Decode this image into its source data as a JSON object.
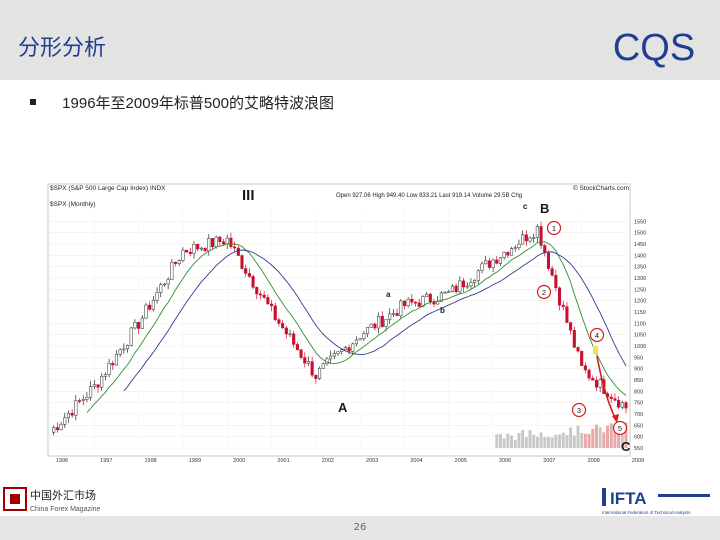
{
  "header": {
    "title": "分形分析",
    "logo_text": "CQS"
  },
  "bullet": {
    "text": "1996年至2009年标普500的艾略特波浪图"
  },
  "chart": {
    "title_line1": "$SPX (S&P 500 Large Cap Index) INDX",
    "title_line2": "$SPX (Monthly)",
    "source": "© StockCharts.com",
    "ohlc": "Open 927.06 High 949.40 Low 833.21 Last 919.14 Volume 29.5B Chg",
    "wave_labels": [
      "III",
      "A",
      "B",
      "C",
      "a",
      "b",
      "c",
      "1",
      "2",
      "3",
      "4",
      "5"
    ],
    "y_ticks": [
      "1550",
      "1500",
      "1450",
      "1400",
      "1350",
      "1300",
      "1250",
      "1200",
      "1150",
      "1100",
      "1050",
      "1000",
      "950",
      "900",
      "850",
      "800",
      "750",
      "700",
      "650",
      "600",
      "550"
    ],
    "x_ticks": [
      "1996",
      "1997",
      "1998",
      "1999",
      "2000",
      "2001",
      "2002",
      "2003",
      "2004",
      "2005",
      "2006",
      "2007",
      "2008",
      "2009"
    ],
    "colors": {
      "up": "#2a2a2a",
      "down": "#c8102e",
      "ma_fast": "#2f8f2f",
      "ma_slow": "#3a3a8f",
      "volume": "#c8c8c8",
      "marker": "#d62020",
      "highlight": "#f2e04a"
    }
  },
  "chart_data": {
    "type": "line",
    "title": "$SPX (S&P 500 Large Cap Index) INDX",
    "x": [
      "1996",
      "1997",
      "1998",
      "1999",
      "2000",
      "2001",
      "2002",
      "2003",
      "2004",
      "2005",
      "2006",
      "2007",
      "2008",
      "2009"
    ],
    "series": [
      {
        "name": "$SPX",
        "values": [
          620,
          820,
          1100,
          1420,
          1470,
          1150,
          870,
          1050,
          1180,
          1230,
          1380,
          1520,
          900,
          730
        ]
      }
    ],
    "ylim": [
      550,
      1600
    ]
  },
  "footer": {
    "page": "26",
    "left_logo_cn": "中国外汇市场",
    "left_logo_en": "China Forex Magazine",
    "right_logo": "IFTA",
    "right_logo_sub": "International Federation of Technical Analysts"
  }
}
